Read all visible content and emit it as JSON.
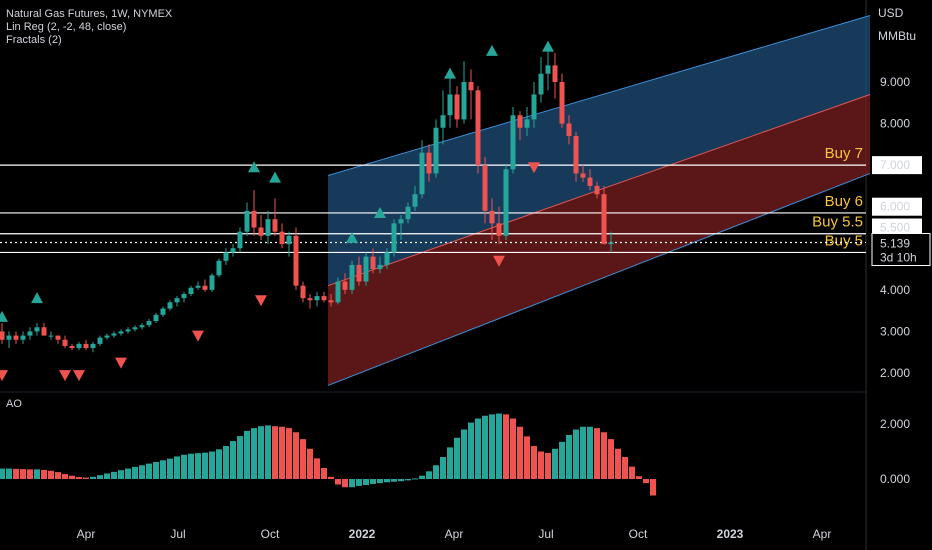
{
  "header": {
    "title": "Natural Gas Futures, 1W, NYMEX",
    "indicator1": "Lin Reg (2, -2, 48, close)",
    "indicator2": "Fractals (2)"
  },
  "axis": {
    "currency": "USD",
    "unit": "MMBtu",
    "price_ticks": [
      "9.000",
      "8.000",
      "7.000",
      "6.000",
      "5.500",
      "5.000",
      "4.000",
      "3.000",
      "2.000"
    ],
    "current_price": "5.139",
    "countdown": "3d 10h",
    "ao_label": "AO",
    "ao_ticks": [
      "2.000",
      "0.000"
    ],
    "x_ticks": [
      {
        "label": "Apr",
        "bold": false
      },
      {
        "label": "Jul",
        "bold": false
      },
      {
        "label": "Oct",
        "bold": false
      },
      {
        "label": "2022",
        "bold": true
      },
      {
        "label": "Apr",
        "bold": false
      },
      {
        "label": "Jul",
        "bold": false
      },
      {
        "label": "Oct",
        "bold": false
      },
      {
        "label": "2023",
        "bold": true
      },
      {
        "label": "Apr",
        "bold": false
      }
    ]
  },
  "levels": [
    {
      "label": "Buy 7",
      "price": 7.0
    },
    {
      "label": "Buy 6",
      "price": 5.85
    },
    {
      "label": "Buy 5.5",
      "price": 5.35
    },
    {
      "label": "Buy 5",
      "price": 4.9
    }
  ],
  "colors": {
    "up": "#26a69a",
    "down": "#ef5350",
    "channel_upper": "#1f4e79",
    "channel_lower": "#7a1f1f",
    "level": "#ffffff",
    "buy_text": "#f6c343"
  },
  "chart_data": {
    "type": "candlestick",
    "title": "Natural Gas Futures, 1W, NYMEX",
    "ylabel": "USD / MMBtu",
    "ylim": [
      1.5,
      10.0
    ],
    "candles": [
      [
        3.0,
        3.2,
        2.7,
        2.8
      ],
      [
        2.8,
        3.0,
        2.6,
        2.9
      ],
      [
        2.9,
        3.0,
        2.7,
        2.8
      ],
      [
        2.8,
        3.0,
        2.7,
        2.9
      ],
      [
        2.9,
        3.1,
        2.8,
        3.0
      ],
      [
        3.0,
        3.2,
        2.9,
        3.1
      ],
      [
        3.1,
        3.2,
        2.9,
        2.9
      ],
      [
        2.9,
        3.0,
        2.8,
        2.9
      ],
      [
        2.9,
        2.9,
        2.7,
        2.8
      ],
      [
        2.8,
        2.9,
        2.6,
        2.65
      ],
      [
        2.65,
        2.7,
        2.55,
        2.6
      ],
      [
        2.6,
        2.75,
        2.55,
        2.7
      ],
      [
        2.7,
        2.8,
        2.55,
        2.6
      ],
      [
        2.6,
        2.75,
        2.5,
        2.7
      ],
      [
        2.7,
        2.9,
        2.65,
        2.85
      ],
      [
        2.85,
        2.95,
        2.8,
        2.9
      ],
      [
        2.9,
        3.0,
        2.85,
        2.95
      ],
      [
        2.95,
        3.05,
        2.9,
        3.0
      ],
      [
        3.0,
        3.1,
        2.95,
        3.05
      ],
      [
        3.05,
        3.15,
        3.0,
        3.1
      ],
      [
        3.1,
        3.2,
        3.05,
        3.15
      ],
      [
        3.15,
        3.3,
        3.1,
        3.25
      ],
      [
        3.25,
        3.45,
        3.2,
        3.4
      ],
      [
        3.4,
        3.6,
        3.35,
        3.55
      ],
      [
        3.55,
        3.75,
        3.5,
        3.7
      ],
      [
        3.7,
        3.85,
        3.6,
        3.8
      ],
      [
        3.8,
        3.95,
        3.7,
        3.9
      ],
      [
        3.9,
        4.1,
        3.85,
        4.05
      ],
      [
        4.05,
        4.2,
        4.0,
        4.1
      ],
      [
        4.1,
        4.25,
        3.95,
        4.0
      ],
      [
        4.0,
        4.4,
        3.95,
        4.35
      ],
      [
        4.35,
        4.75,
        4.3,
        4.7
      ],
      [
        4.7,
        5.0,
        4.6,
        4.9
      ],
      [
        4.9,
        5.1,
        4.8,
        5.0
      ],
      [
        5.0,
        5.5,
        4.9,
        5.4
      ],
      [
        5.4,
        6.1,
        5.3,
        5.9
      ],
      [
        5.9,
        6.4,
        5.3,
        5.5
      ],
      [
        5.5,
        5.8,
        5.2,
        5.3
      ],
      [
        5.3,
        5.9,
        5.1,
        5.7
      ],
      [
        5.7,
        6.2,
        5.3,
        5.4
      ],
      [
        5.4,
        5.6,
        5.0,
        5.1
      ],
      [
        5.1,
        5.4,
        4.8,
        5.3
      ],
      [
        5.3,
        5.5,
        4.0,
        4.1
      ],
      [
        4.1,
        4.2,
        3.7,
        3.8
      ],
      [
        3.8,
        3.9,
        3.55,
        3.75
      ],
      [
        3.75,
        3.95,
        3.6,
        3.85
      ],
      [
        3.85,
        3.95,
        3.7,
        3.75
      ],
      [
        3.75,
        3.9,
        3.6,
        3.7
      ],
      [
        3.7,
        4.3,
        3.65,
        4.2
      ],
      [
        4.2,
        4.4,
        3.9,
        4.0
      ],
      [
        4.0,
        4.7,
        3.9,
        4.6
      ],
      [
        4.6,
        4.8,
        4.1,
        4.2
      ],
      [
        4.2,
        4.9,
        4.1,
        4.8
      ],
      [
        4.8,
        5.0,
        4.4,
        4.5
      ],
      [
        4.5,
        4.8,
        4.4,
        4.6
      ],
      [
        4.6,
        5.0,
        4.5,
        4.9
      ],
      [
        4.9,
        5.7,
        4.8,
        5.6
      ],
      [
        5.6,
        5.8,
        5.2,
        5.7
      ],
      [
        5.7,
        6.1,
        5.6,
        6.0
      ],
      [
        6.0,
        6.5,
        5.9,
        6.3
      ],
      [
        6.3,
        7.6,
        6.2,
        7.3
      ],
      [
        7.3,
        7.5,
        6.6,
        6.8
      ],
      [
        6.8,
        8.1,
        6.7,
        7.9
      ],
      [
        7.9,
        8.8,
        7.5,
        8.2
      ],
      [
        8.2,
        9.1,
        7.9,
        8.7
      ],
      [
        8.7,
        8.9,
        7.9,
        8.1
      ],
      [
        8.1,
        9.5,
        8.0,
        9.0
      ],
      [
        9.0,
        9.3,
        8.1,
        8.8
      ],
      [
        8.8,
        8.9,
        6.8,
        7.0
      ],
      [
        7.0,
        7.2,
        5.6,
        5.9
      ],
      [
        5.9,
        6.2,
        5.2,
        5.6
      ],
      [
        5.6,
        6.0,
        5.1,
        5.3
      ],
      [
        5.3,
        7.0,
        5.2,
        6.9
      ],
      [
        6.9,
        8.4,
        6.8,
        8.2
      ],
      [
        8.2,
        8.3,
        7.6,
        7.9
      ],
      [
        7.9,
        8.4,
        7.7,
        8.1
      ],
      [
        8.1,
        9.0,
        7.9,
        8.7
      ],
      [
        8.7,
        9.6,
        8.5,
        9.2
      ],
      [
        9.2,
        9.9,
        8.8,
        9.4
      ],
      [
        9.4,
        9.7,
        8.6,
        9.0
      ],
      [
        9.0,
        9.2,
        7.9,
        8.0
      ],
      [
        8.0,
        8.2,
        7.5,
        7.7
      ],
      [
        7.7,
        7.8,
        6.6,
        6.8
      ],
      [
        6.8,
        7.0,
        6.6,
        6.7
      ],
      [
        6.7,
        6.9,
        6.4,
        6.5
      ],
      [
        6.5,
        6.6,
        6.2,
        6.3
      ],
      [
        6.3,
        6.5,
        5.1,
        5.1
      ],
      [
        5.1,
        5.4,
        4.9,
        5.139
      ]
    ],
    "channel": {
      "start_index": 42,
      "end_index": 104,
      "upper_start": 6.75,
      "upper_end": 10.6,
      "mid_start": 4.1,
      "mid_end": 8.7,
      "lower_start": 1.7,
      "lower_end": 6.8
    },
    "fractals_up": [
      [
        0,
        3.35
      ],
      [
        5,
        3.8
      ],
      [
        36,
        6.95
      ],
      [
        39,
        6.7
      ],
      [
        50,
        5.25
      ],
      [
        54,
        5.85
      ],
      [
        64,
        9.2
      ],
      [
        70,
        9.75
      ],
      [
        78,
        9.85
      ]
    ],
    "fractals_down": [
      [
        0,
        1.95
      ],
      [
        9,
        1.95
      ],
      [
        11,
        1.95
      ],
      [
        17,
        2.25
      ],
      [
        28,
        2.9
      ],
      [
        37,
        3.75
      ],
      [
        71,
        4.7
      ],
      [
        76,
        6.95
      ]
    ],
    "ao": {
      "ylim": [
        -0.9,
        2.5
      ],
      "values": [
        0.38,
        0.38,
        0.37,
        0.36,
        0.35,
        0.35,
        0.33,
        0.3,
        0.25,
        0.18,
        0.12,
        0.07,
        0.05,
        0.08,
        0.14,
        0.2,
        0.26,
        0.32,
        0.38,
        0.44,
        0.5,
        0.56,
        0.62,
        0.68,
        0.74,
        0.82,
        0.88,
        0.92,
        0.94,
        0.96,
        1.0,
        1.08,
        1.2,
        1.38,
        1.56,
        1.75,
        1.85,
        1.92,
        1.95,
        1.92,
        1.9,
        1.85,
        1.7,
        1.45,
        1.1,
        0.75,
        0.4,
        0.08,
        -0.2,
        -0.3,
        -0.3,
        -0.25,
        -0.22,
        -0.18,
        -0.15,
        -0.12,
        -0.1,
        -0.08,
        -0.05,
        0.02,
        0.12,
        0.28,
        0.5,
        0.8,
        1.15,
        1.5,
        1.8,
        2.05,
        2.2,
        2.3,
        2.35,
        2.38,
        2.35,
        2.2,
        1.9,
        1.55,
        1.2,
        1.0,
        0.95,
        1.1,
        1.35,
        1.6,
        1.8,
        1.9,
        1.9,
        1.85,
        1.7,
        1.45,
        1.1,
        0.8,
        0.45,
        0.1,
        -0.15,
        -0.6
      ]
    }
  }
}
